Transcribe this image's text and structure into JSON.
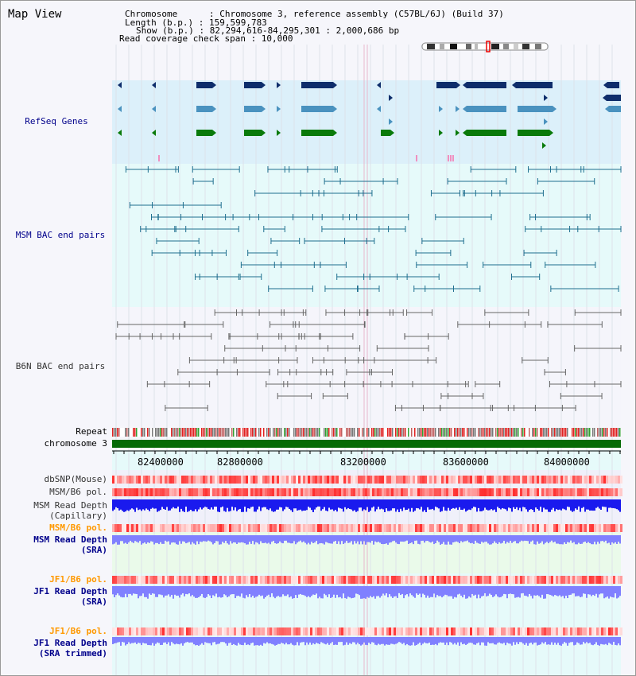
{
  "title": "Map View",
  "info": {
    "chromosome": "Chromosome      : Chromosome 3, reference assembly (C57BL/6J) (Build 37)",
    "length": "Length (b.p.) : 159,599,783",
    "show": "Show (b.p.) : 82,294,616-84,295,301 : 2,000,686 bp",
    "span": "Read coverage check span : 10,000"
  },
  "tracks": {
    "refseq": "RefSeq Genes",
    "msm_bac": "MSM BAC end pairs",
    "b6n_bac": "B6N BAC end pairs",
    "repeat": "Repeat",
    "chromosome": "chromosome 3",
    "dbsnp": "dbSNP(Mouse)",
    "msm_b6_pol_1": "MSM/B6 pol.",
    "msm_depth_cap_1": "MSM Read Depth",
    "msm_depth_cap_2": "(Capillary)",
    "msm_b6_pol_2": "MSM/B6 pol.",
    "msm_depth_sra_1": "MSM Read Depth",
    "msm_depth_sra_2": "(SRA)",
    "jf1_pol_1": "JF1/B6 pol.",
    "jf1_depth_1": "JF1 Read Depth",
    "jf1_depth_2": "(SRA)",
    "jf1_pol_2": "JF1/B6 pol.",
    "jf1_trim_1": "JF1 Read Depth",
    "jf1_trim_2": "(SRA trimmed)"
  },
  "axis_ticks": [
    "82400000",
    "82800000",
    "83200000",
    "83600000",
    "84000000"
  ],
  "colors": {
    "refseq_bg": "#dcf0fa",
    "msm_bg": "#e6fafa",
    "b6n_bg": "#f5f5fb",
    "gene_navy": "#0e2d6b",
    "gene_blue": "#4a92bf",
    "gene_green": "#0a7a0a",
    "msm_line": "#1f6f8f",
    "b6n_line": "#666666",
    "chrom_green": "#066b06",
    "depth_dark": "#1a1aee",
    "depth_light": "#8080ff",
    "label_blue": "#00008b",
    "label_orange": "#ff9900"
  }
}
